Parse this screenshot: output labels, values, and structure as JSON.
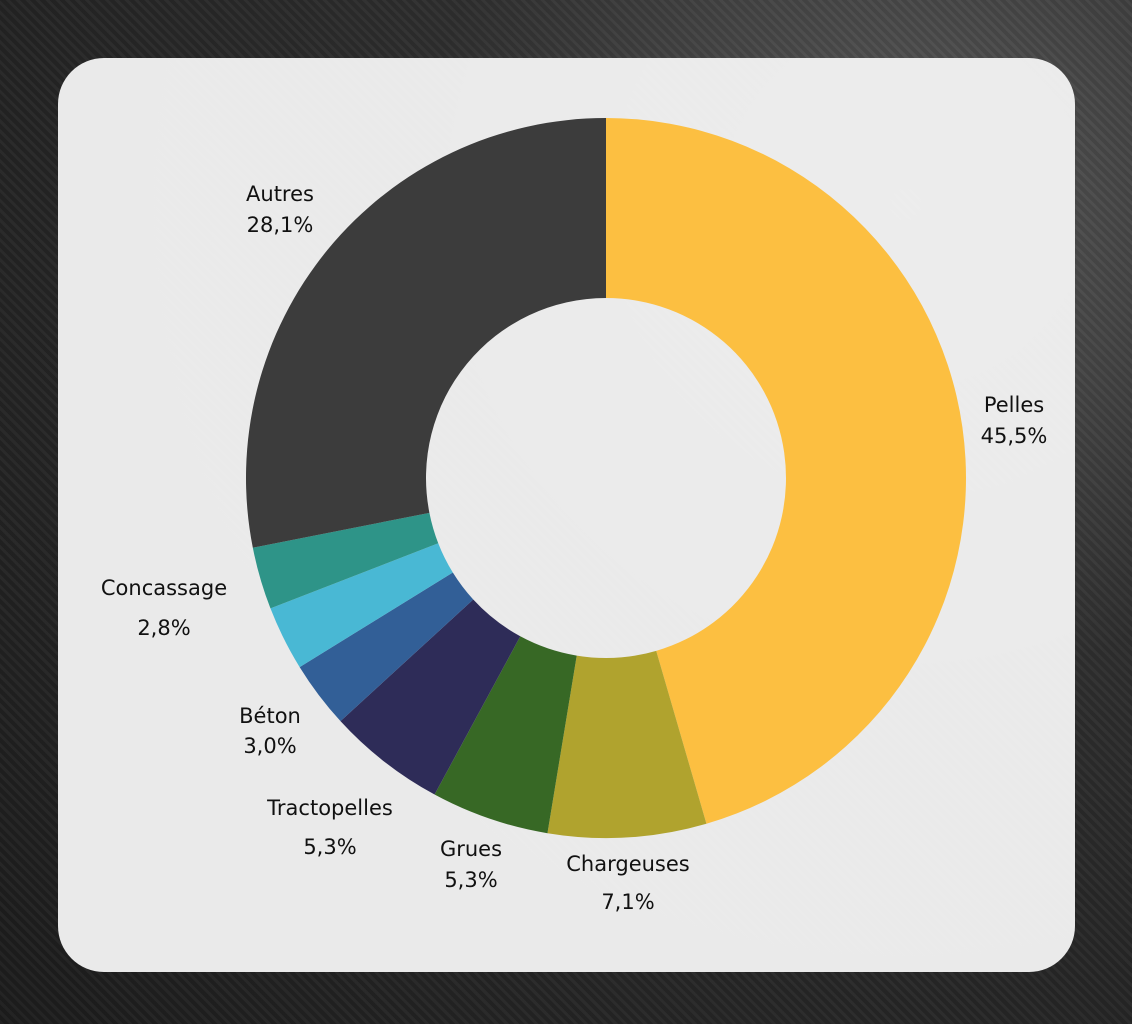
{
  "chart_data": {
    "type": "pie",
    "donut": true,
    "title": "",
    "slices": [
      {
        "name": "Pelles",
        "value": 45.5,
        "label": "45,5%",
        "color": "#fcbf41"
      },
      {
        "name": "Chargeuses",
        "value": 7.1,
        "label": "7,1%",
        "color": "#b0a32e"
      },
      {
        "name": "Grues",
        "value": 5.3,
        "label": "5,3%",
        "color": "#376825"
      },
      {
        "name": "Tractopelles",
        "value": 5.3,
        "label": "5,3%",
        "color": "#2e2c58"
      },
      {
        "name": "Béton",
        "value": 3.0,
        "label": "3,0%",
        "color": "#325f97"
      },
      {
        "name": "",
        "value": 2.9,
        "label": "",
        "color": "#49b8d4"
      },
      {
        "name": "Concassage",
        "value": 2.8,
        "label": "2,8%",
        "color": "#2e9488"
      },
      {
        "name": "Autres",
        "value": 28.1,
        "label": "28,1%",
        "color": "#3c3c3c"
      }
    ],
    "start_angle": "top",
    "direction": "clockwise",
    "legend": "none"
  }
}
